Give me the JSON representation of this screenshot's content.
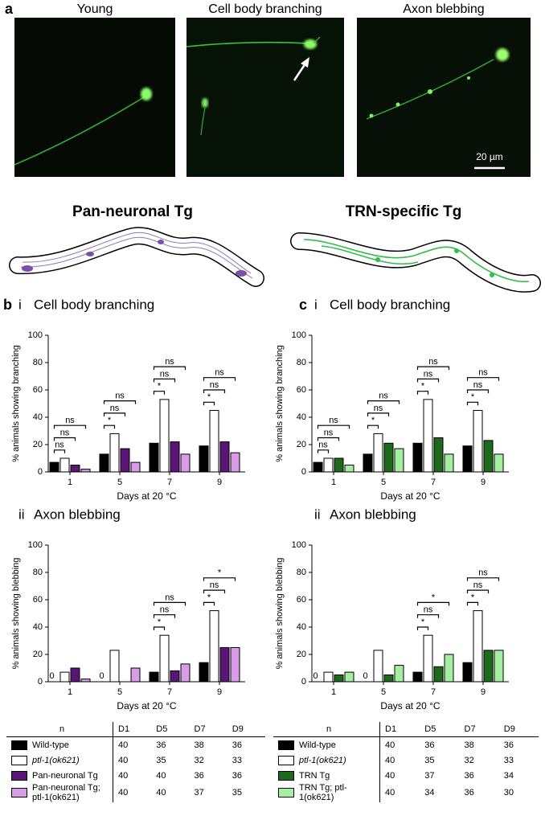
{
  "figure": {
    "panel_a": {
      "label": "a",
      "images": [
        "Young",
        "Cell body branching",
        "Axon blebbing"
      ],
      "scale_bar": "20 µm",
      "strains": [
        "Pan-neuronal Tg",
        "TRN-specific Tg"
      ]
    }
  },
  "chart_data": [
    {
      "type": "bar",
      "panel": "b",
      "part": "i",
      "title": "Cell body branching",
      "y_label": "% animals showing branching",
      "x_label": "Days at 20 °C",
      "categories": [
        "1",
        "5",
        "7",
        "9"
      ],
      "ylim": [
        0,
        100
      ],
      "yticks": [
        0,
        20,
        40,
        60,
        80,
        100
      ],
      "series": [
        {
          "name": "Wild-type",
          "color": "#000000",
          "values": [
            7,
            13,
            21,
            19
          ]
        },
        {
          "name": "ptl-1(ok621)",
          "color": "#ffffff",
          "values": [
            10,
            28,
            53,
            45
          ],
          "significance": [
            "ns",
            "*",
            "*",
            "*"
          ]
        },
        {
          "name": "Pan-neuronal Tg",
          "color": "#5b1577",
          "values": [
            5,
            17,
            22,
            22
          ],
          "significance": [
            "ns",
            "ns",
            "ns",
            "ns"
          ]
        },
        {
          "name": "Pan-neuronal Tg; ptl-1(ok621)",
          "color": "#d89ce8",
          "values": [
            2,
            7,
            13,
            14
          ],
          "significance": [
            "ns",
            "ns",
            "ns",
            "ns"
          ]
        }
      ]
    },
    {
      "type": "bar",
      "part": "ii",
      "title": "Axon blebbing",
      "y_label": "% animals showing blebbing",
      "x_label": "Days at 20 °C",
      "categories": [
        "1",
        "5",
        "7",
        "9"
      ],
      "ylim": [
        0,
        100
      ],
      "yticks": [
        0,
        20,
        40,
        60,
        80,
        100
      ],
      "series": [
        {
          "name": "Wild-type",
          "color": "#000000",
          "values": [
            0,
            0,
            7,
            14
          ],
          "value_labels": [
            "0",
            "0",
            null,
            null
          ]
        },
        {
          "name": "ptl-1(ok621)",
          "color": "#ffffff",
          "values": [
            7,
            23,
            34,
            52
          ],
          "significance": [
            null,
            null,
            "*",
            "*"
          ]
        },
        {
          "name": "Pan-neuronal Tg",
          "color": "#5b1577",
          "values": [
            10,
            0,
            8,
            25
          ],
          "significance": [
            null,
            null,
            "ns",
            "ns"
          ]
        },
        {
          "name": "Pan-neuronal Tg; ptl-1(ok621)",
          "color": "#d89ce8",
          "values": [
            2,
            10,
            13,
            25
          ],
          "significance": [
            null,
            null,
            "ns",
            "*"
          ]
        }
      ]
    },
    {
      "type": "bar",
      "panel": "c",
      "part": "i",
      "title": "Cell body branching",
      "y_label": "% animals showing branching",
      "x_label": "Days at 20 °C",
      "categories": [
        "1",
        "5",
        "7",
        "9"
      ],
      "ylim": [
        0,
        100
      ],
      "yticks": [
        0,
        20,
        40,
        60,
        80,
        100
      ],
      "series": [
        {
          "name": "Wild-type",
          "color": "#000000",
          "values": [
            7,
            13,
            21,
            19
          ]
        },
        {
          "name": "ptl-1(ok621)",
          "color": "#ffffff",
          "values": [
            10,
            28,
            53,
            45
          ],
          "significance": [
            "ns",
            "*",
            "*",
            "*"
          ]
        },
        {
          "name": "TRN Tg",
          "color": "#1d6a1d",
          "values": [
            10,
            21,
            25,
            23
          ],
          "significance": [
            "ns",
            "ns",
            "ns",
            "ns"
          ]
        },
        {
          "name": "TRN Tg; ptl-1(ok621)",
          "color": "#a4f0a0",
          "values": [
            5,
            17,
            13,
            13
          ],
          "significance": [
            "ns",
            "ns",
            "ns",
            "ns"
          ]
        }
      ]
    },
    {
      "type": "bar",
      "part": "ii",
      "title": "Axon blebbing",
      "y_label": "% animals showing blebbing",
      "x_label": "Days at 20 °C",
      "categories": [
        "1",
        "5",
        "7",
        "9"
      ],
      "ylim": [
        0,
        100
      ],
      "yticks": [
        0,
        20,
        40,
        60,
        80,
        100
      ],
      "series": [
        {
          "name": "Wild-type",
          "color": "#000000",
          "values": [
            0,
            0,
            7,
            14
          ],
          "value_labels": [
            "0",
            "0",
            null,
            null
          ]
        },
        {
          "name": "ptl-1(ok621)",
          "color": "#ffffff",
          "values": [
            7,
            23,
            34,
            52
          ],
          "significance": [
            null,
            null,
            "*",
            "*"
          ]
        },
        {
          "name": "TRN Tg",
          "color": "#1d6a1d",
          "values": [
            5,
            5,
            11,
            23
          ],
          "significance": [
            null,
            null,
            "ns",
            "ns"
          ]
        },
        {
          "name": "TRN Tg; ptl-1(ok621)",
          "color": "#a4f0a0",
          "values": [
            7,
            12,
            20,
            23
          ],
          "significance": [
            null,
            null,
            "*",
            "ns"
          ]
        }
      ]
    }
  ],
  "tables": [
    {
      "header": [
        "n",
        "D1",
        "D5",
        "D7",
        "D9"
      ],
      "rows": [
        [
          40,
          36,
          38,
          36
        ],
        [
          40,
          35,
          32,
          33
        ],
        [
          40,
          40,
          36,
          36
        ],
        [
          40,
          40,
          37,
          35
        ]
      ]
    },
    {
      "header": [
        "n",
        "D1",
        "D5",
        "D7",
        "D9"
      ],
      "rows": [
        [
          40,
          36,
          38,
          36
        ],
        [
          40,
          35,
          32,
          33
        ],
        [
          40,
          37,
          36,
          34
        ],
        [
          40,
          34,
          36,
          30
        ]
      ]
    }
  ]
}
